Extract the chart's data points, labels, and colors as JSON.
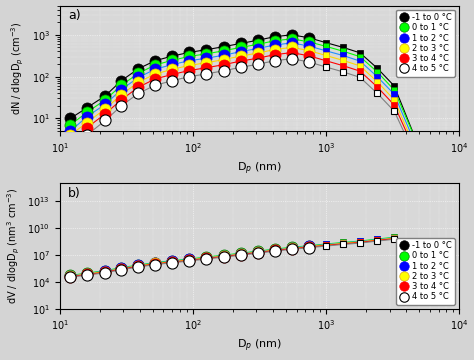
{
  "colors": [
    "black",
    "green",
    "blue",
    "yellow",
    "red",
    "lightgray"
  ],
  "face_colors": [
    "black",
    "lime",
    "blue",
    "yellow",
    "red",
    "white"
  ],
  "edge_colors": [
    "black",
    "green",
    "blue",
    "goldenrod",
    "red",
    "black"
  ],
  "line_colors": [
    "black",
    "lime",
    "dodgerblue",
    "gold",
    "red",
    "gray"
  ],
  "labels": [
    "-1 to 0 °C",
    "0 to 1 °C",
    "1 to 2 °C",
    "2 to 3 °C",
    "3 to 4 °C",
    "4 to 5 °C"
  ],
  "fill_styles": [
    "full",
    "full",
    "full",
    "full",
    "full",
    "none"
  ],
  "dp_nm": [
    12,
    16,
    22,
    29,
    39,
    52,
    70,
    94,
    126,
    170,
    228,
    306,
    411,
    552,
    742,
    997,
    1340,
    1800,
    2420,
    3250,
    5000
  ],
  "dN_series": [
    [
      10,
      18,
      35,
      80,
      155,
      240,
      310,
      380,
      440,
      520,
      620,
      740,
      900,
      1000,
      850,
      650,
      500,
      370,
      160,
      60,
      2
    ],
    [
      7,
      14,
      28,
      62,
      120,
      190,
      245,
      305,
      350,
      415,
      500,
      590,
      720,
      800,
      680,
      530,
      405,
      300,
      130,
      48,
      2
    ],
    [
      5,
      11,
      22,
      49,
      96,
      150,
      195,
      240,
      275,
      325,
      395,
      470,
      570,
      640,
      540,
      415,
      320,
      235,
      100,
      38,
      1.5
    ],
    [
      4,
      8,
      17,
      37,
      74,
      115,
      150,
      185,
      215,
      255,
      310,
      365,
      445,
      500,
      420,
      320,
      245,
      180,
      76,
      28,
      1.2
    ],
    [
      3,
      6,
      13,
      28,
      56,
      88,
      113,
      140,
      163,
      193,
      235,
      275,
      335,
      375,
      315,
      240,
      183,
      135,
      57,
      21,
      1.0
    ],
    [
      2,
      4,
      9,
      20,
      40,
      62,
      80,
      100,
      116,
      138,
      167,
      197,
      240,
      268,
      225,
      170,
      130,
      96,
      40,
      15,
      0.8
    ]
  ],
  "dV_series": [
    [
      45000.0,
      80000.0,
      150000.0,
      320000.0,
      650000.0,
      1200000.0,
      1900000.0,
      3000000.0,
      5000000.0,
      8000000.0,
      13000000.0,
      22000000.0,
      38000000.0,
      60000000.0,
      90000000.0,
      140000000.0,
      210000000.0,
      300000000.0,
      500000000.0,
      800000000.0,
      null
    ],
    [
      55000.0,
      100000.0,
      190000.0,
      400000.0,
      800000.0,
      1500000.0,
      2400000.0,
      3700000.0,
      6200000.0,
      10000000.0,
      16500000.0,
      27500000.0,
      48000000.0,
      75000000.0,
      113000000.0,
      175000000.0,
      262000000.0,
      375000000.0,
      625000000.0,
      1000000000.0,
      null
    ],
    [
      50000.0,
      90000.0,
      170000.0,
      360000.0,
      720000.0,
      1350000.0,
      2150000.0,
      3350000.0,
      5500000.0,
      9000000.0,
      15000000.0,
      25000000.0,
      43000000.0,
      68000000.0,
      102000000.0,
      157000000.0,
      236000000.0,
      338000000.0,
      562000000.0,
      900000000.0,
      null
    ],
    [
      45000.0,
      80000.0,
      150000.0,
      320000.0,
      650000.0,
      1200000.0,
      1900000.0,
      3000000.0,
      5000000.0,
      8000000.0,
      13300000.0,
      22000000.0,
      38000000.0,
      60000000.0,
      90000000.0,
      140000000.0,
      210000000.0,
      300000000.0,
      500000000.0,
      800000000.0,
      null
    ],
    [
      40000.0,
      70000.0,
      130000.0,
      280000.0,
      570000.0,
      1060000.0,
      1680000.0,
      2650000.0,
      4400000.0,
      7100000.0,
      11800000.0,
      19500000.0,
      33500000.0,
      53000000.0,
      79500000.0,
      123000000.0,
      185000000.0,
      265000000.0,
      440000000.0,
      700000000.0,
      null
    ],
    [
      35000.0,
      60000.0,
      110000.0,
      240000.0,
      480000.0,
      900000.0,
      1430000.0,
      2250000.0,
      3750000.0,
      6000000.0,
      10000000.0,
      16500000.0,
      28500000.0,
      45000000.0,
      67500000.0,
      105000000.0,
      157000000.0,
      225000000.0,
      375000000.0,
      600000000.0,
      null
    ]
  ],
  "xlabel": "D$_p$ (nm)",
  "ylabel_a": "dN / dlogD$_p$ (cm$^{-3}$)",
  "ylabel_b": "dV / dlogD$_p$ (nm$^3$ cm$^{-3}$)",
  "xlim": [
    10,
    10000
  ],
  "ylim_a": [
    5,
    5000
  ],
  "ylim_b": [
    10.0,
    1000000000000000.0
  ],
  "bg_color": "#d4d4d4",
  "plot_bg": "#d8d8d8",
  "marker_size": 8,
  "sq_marker_size": 5,
  "line_width": 0.8,
  "sq_start_idx": 15
}
